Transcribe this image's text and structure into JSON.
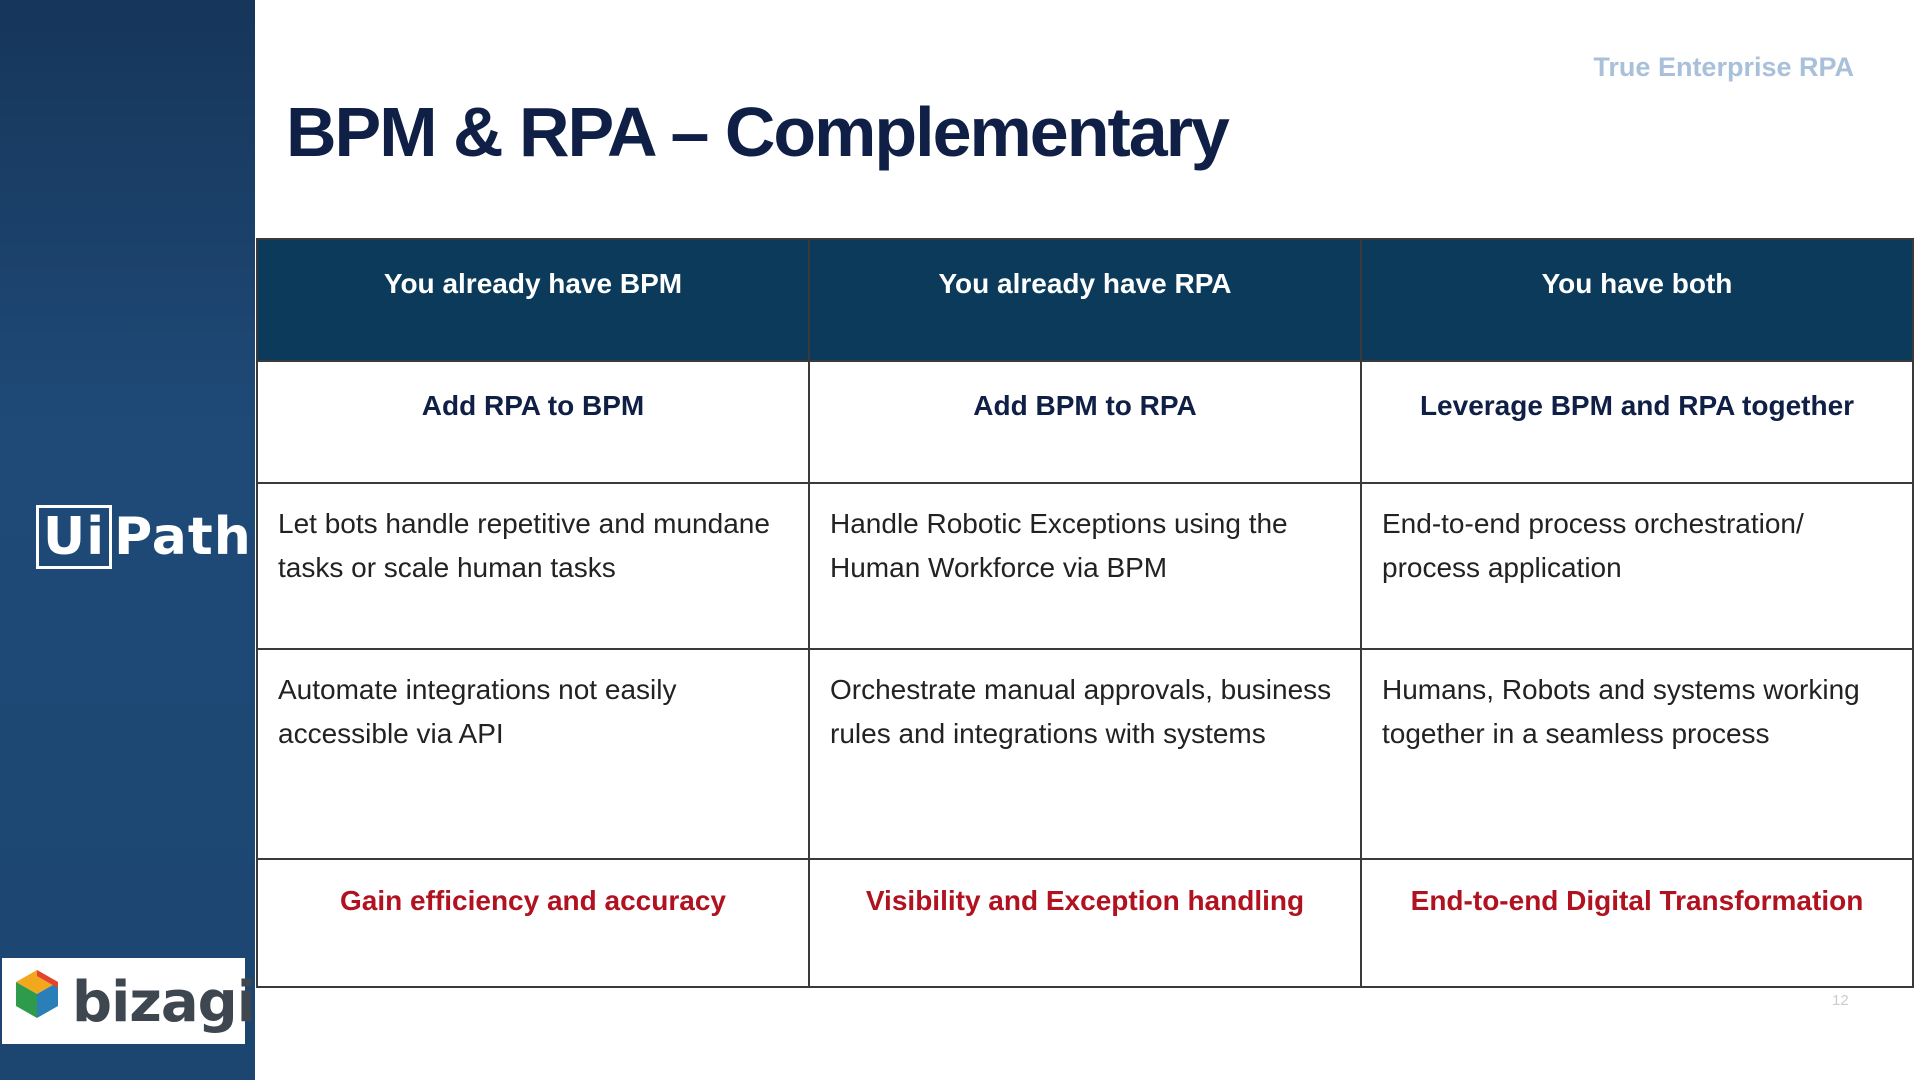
{
  "brand_tag": "True Enterprise RPA",
  "title": "BPM & RPA – Complementary",
  "logos": {
    "uipath_ui": "Ui",
    "uipath_path": "Path",
    "bizagi": "bizagi"
  },
  "table": {
    "headers": [
      "You already have BPM",
      "You already have RPA",
      "You have both"
    ],
    "subheaders": [
      "Add RPA to BPM",
      "Add BPM to RPA",
      "Leverage BPM and RPA together"
    ],
    "rows": [
      [
        "Let bots handle repetitive and mundane tasks or scale human tasks",
        "Handle Robotic Exceptions using the Human Workforce via BPM",
        "End-to-end process orchestration/ process application"
      ],
      [
        "Automate integrations not easily accessible via API",
        "Orchestrate manual approvals, business rules and integrations with systems",
        "Humans, Robots and systems working together in a seamless process"
      ]
    ],
    "outcomes": [
      "Gain efficiency and accuracy",
      "Visibility and Exception handling",
      "End-to-end Digital Transformation"
    ]
  },
  "page_number": "12",
  "colors": {
    "sidebar": "#1f4a78",
    "header_bg": "#0b3a5a",
    "title": "#0f1f45",
    "outcome": "#b0121f",
    "tag": "#a9c0da"
  }
}
